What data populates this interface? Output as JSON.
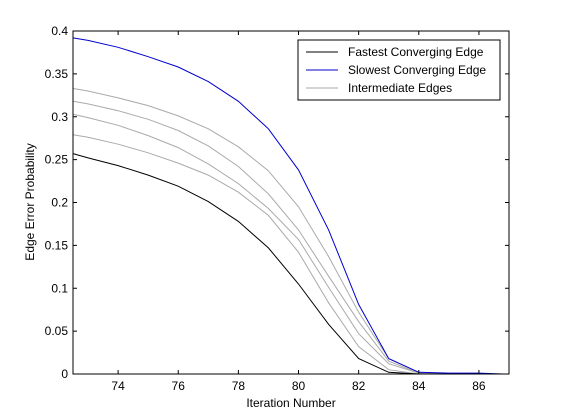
{
  "chart_data": {
    "type": "line",
    "title": "",
    "xlabel": "Iteration Number",
    "ylabel": "Edge Error Probability",
    "xlim": [
      72.5,
      87
    ],
    "ylim": [
      0,
      0.4
    ],
    "xticks": [
      74,
      76,
      78,
      80,
      82,
      84,
      86
    ],
    "yticks": [
      0,
      0.05,
      0.1,
      0.15,
      0.2,
      0.25,
      0.3,
      0.35,
      0.4
    ],
    "xtick_labels": [
      "74",
      "76",
      "78",
      "80",
      "82",
      "84",
      "86"
    ],
    "ytick_labels": [
      "0",
      "0.05",
      "0.1",
      "0.15",
      "0.2",
      "0.25",
      "0.3",
      "0.35",
      "0.4"
    ],
    "grid": false,
    "legend_position": "top-right",
    "legend": [
      {
        "label": "Fastest Converging Edge",
        "color": "#000000"
      },
      {
        "label": "Slowest Converging Edge",
        "color": "#0000cc"
      },
      {
        "label": "Intermediate Edges",
        "color": "#aaaaaa"
      }
    ],
    "series": [
      {
        "name": "Fastest Converging Edge",
        "color": "#000000",
        "x": [
          72.5,
          73,
          74,
          75,
          76,
          77,
          78,
          79,
          80,
          81,
          82,
          83,
          84,
          85,
          86
        ],
        "y": [
          0.257,
          0.252,
          0.243,
          0.232,
          0.219,
          0.201,
          0.178,
          0.147,
          0.105,
          0.058,
          0.018,
          0.002,
          0.0,
          0.0,
          0.0
        ]
      },
      {
        "name": "Slowest Converging Edge",
        "color": "#0000cc",
        "x": [
          72.5,
          73,
          74,
          75,
          76,
          77,
          78,
          79,
          80,
          81,
          82,
          83,
          84,
          85,
          86,
          86.8
        ],
        "y": [
          0.392,
          0.389,
          0.381,
          0.37,
          0.358,
          0.341,
          0.318,
          0.286,
          0.238,
          0.168,
          0.081,
          0.018,
          0.002,
          0.001,
          0.001,
          0.0
        ]
      },
      {
        "color": "#aaaaaa",
        "x": [
          72.5,
          73,
          74,
          75,
          76,
          77,
          78,
          79,
          80,
          81,
          82,
          83,
          84,
          85,
          86
        ],
        "y": [
          0.279,
          0.276,
          0.268,
          0.258,
          0.246,
          0.232,
          0.212,
          0.185,
          0.142,
          0.083,
          0.032,
          0.005,
          0.0,
          0.0,
          0.0
        ]
      },
      {
        "color": "#aaaaaa",
        "x": [
          72.5,
          73,
          74,
          75,
          76,
          77,
          78,
          79,
          80,
          81,
          82,
          83,
          84,
          85,
          86
        ],
        "y": [
          0.303,
          0.299,
          0.29,
          0.278,
          0.264,
          0.245,
          0.222,
          0.193,
          0.157,
          0.101,
          0.047,
          0.012,
          0.001,
          0.0,
          0.0
        ]
      },
      {
        "color": "#aaaaaa",
        "x": [
          72.5,
          73,
          74,
          75,
          76,
          77,
          78,
          79,
          80,
          81,
          82,
          83,
          84,
          85,
          86
        ],
        "y": [
          0.318,
          0.315,
          0.307,
          0.297,
          0.284,
          0.266,
          0.242,
          0.21,
          0.168,
          0.114,
          0.061,
          0.015,
          0.001,
          0.0,
          0.0
        ]
      },
      {
        "color": "#aaaaaa",
        "x": [
          72.5,
          73,
          74,
          75,
          76,
          77,
          78,
          79,
          80,
          81,
          82,
          83,
          84,
          85,
          86
        ],
        "y": [
          0.333,
          0.33,
          0.322,
          0.313,
          0.301,
          0.286,
          0.265,
          0.237,
          0.195,
          0.137,
          0.072,
          0.018,
          0.002,
          0.0,
          0.0
        ]
      }
    ]
  }
}
